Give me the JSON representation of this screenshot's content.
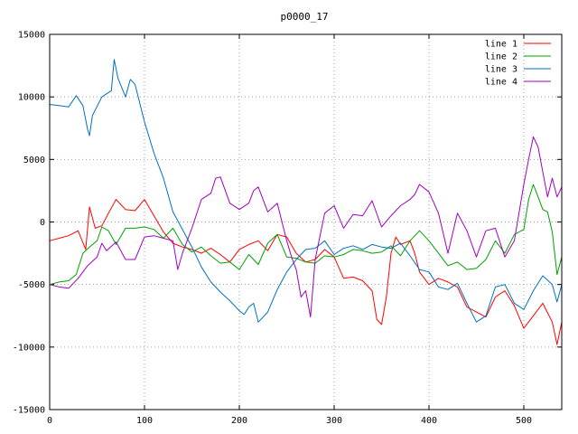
{
  "chart_data": {
    "type": "line",
    "title": "p0000_17",
    "xlabel": "",
    "ylabel": "",
    "xlim": [
      0,
      540
    ],
    "ylim": [
      -15000,
      15000
    ],
    "xticks": [
      0,
      100,
      200,
      300,
      400,
      500
    ],
    "yticks": [
      -15000,
      -10000,
      -5000,
      0,
      5000,
      10000,
      15000
    ],
    "grid": true,
    "legend_position": "top-right",
    "series": [
      {
        "name": "line 1",
        "color": "#ff0000",
        "points": [
          [
            0,
            -1500
          ],
          [
            10,
            -1300
          ],
          [
            20,
            -1100
          ],
          [
            30,
            -700
          ],
          [
            38,
            -2200
          ],
          [
            42,
            1200
          ],
          [
            48,
            -500
          ],
          [
            55,
            -300
          ],
          [
            62,
            700
          ],
          [
            70,
            1800
          ],
          [
            80,
            1000
          ],
          [
            90,
            900
          ],
          [
            100,
            1800
          ],
          [
            110,
            500
          ],
          [
            120,
            -800
          ],
          [
            130,
            -1700
          ],
          [
            140,
            -2000
          ],
          [
            150,
            -2200
          ],
          [
            160,
            -2500
          ],
          [
            170,
            -2100
          ],
          [
            180,
            -2600
          ],
          [
            190,
            -3200
          ],
          [
            200,
            -2200
          ],
          [
            210,
            -1800
          ],
          [
            220,
            -1500
          ],
          [
            230,
            -2300
          ],
          [
            240,
            -1000
          ],
          [
            250,
            -1200
          ],
          [
            260,
            -2500
          ],
          [
            270,
            -3200
          ],
          [
            280,
            -3000
          ],
          [
            290,
            -2200
          ],
          [
            300,
            -2800
          ],
          [
            310,
            -4500
          ],
          [
            320,
            -4400
          ],
          [
            330,
            -4700
          ],
          [
            340,
            -5500
          ],
          [
            345,
            -7800
          ],
          [
            350,
            -8200
          ],
          [
            355,
            -6000
          ],
          [
            360,
            -2500
          ],
          [
            365,
            -1200
          ],
          [
            370,
            -1800
          ],
          [
            380,
            -1500
          ],
          [
            385,
            -2500
          ],
          [
            390,
            -4000
          ],
          [
            400,
            -5000
          ],
          [
            410,
            -4500
          ],
          [
            420,
            -4800
          ],
          [
            430,
            -5200
          ],
          [
            440,
            -6800
          ],
          [
            450,
            -7200
          ],
          [
            460,
            -7600
          ],
          [
            470,
            -6000
          ],
          [
            480,
            -5500
          ],
          [
            490,
            -6700
          ],
          [
            500,
            -8500
          ],
          [
            510,
            -7500
          ],
          [
            520,
            -6500
          ],
          [
            530,
            -8000
          ],
          [
            535,
            -9800
          ],
          [
            540,
            -8000
          ]
        ]
      },
      {
        "name": "line 2",
        "color": "#00a000",
        "points": [
          [
            0,
            -5000
          ],
          [
            10,
            -4800
          ],
          [
            20,
            -4700
          ],
          [
            28,
            -4200
          ],
          [
            35,
            -2500
          ],
          [
            42,
            -2000
          ],
          [
            50,
            -1500
          ],
          [
            55,
            -400
          ],
          [
            62,
            -700
          ],
          [
            70,
            -1800
          ],
          [
            80,
            -500
          ],
          [
            90,
            -500
          ],
          [
            100,
            -400
          ],
          [
            110,
            -600
          ],
          [
            120,
            -1300
          ],
          [
            130,
            -500
          ],
          [
            140,
            -1800
          ],
          [
            150,
            -2400
          ],
          [
            160,
            -2000
          ],
          [
            170,
            -2700
          ],
          [
            180,
            -3300
          ],
          [
            190,
            -3200
          ],
          [
            200,
            -3800
          ],
          [
            210,
            -2600
          ],
          [
            220,
            -3400
          ],
          [
            230,
            -1700
          ],
          [
            240,
            -1000
          ],
          [
            250,
            -2800
          ],
          [
            260,
            -2900
          ],
          [
            270,
            -3200
          ],
          [
            280,
            -3300
          ],
          [
            290,
            -2700
          ],
          [
            300,
            -2800
          ],
          [
            310,
            -2600
          ],
          [
            320,
            -2200
          ],
          [
            330,
            -2300
          ],
          [
            340,
            -2500
          ],
          [
            350,
            -2400
          ],
          [
            360,
            -1900
          ],
          [
            370,
            -2700
          ],
          [
            380,
            -1500
          ],
          [
            390,
            -700
          ],
          [
            400,
            -1500
          ],
          [
            410,
            -2500
          ],
          [
            420,
            -3500
          ],
          [
            430,
            -3200
          ],
          [
            440,
            -3800
          ],
          [
            450,
            -3700
          ],
          [
            460,
            -3000
          ],
          [
            470,
            -1500
          ],
          [
            480,
            -2500
          ],
          [
            490,
            -1000
          ],
          [
            500,
            -600
          ],
          [
            505,
            1800
          ],
          [
            510,
            3000
          ],
          [
            515,
            2000
          ],
          [
            520,
            1000
          ],
          [
            525,
            800
          ],
          [
            530,
            -800
          ],
          [
            535,
            -4200
          ],
          [
            540,
            -2800
          ]
        ]
      },
      {
        "name": "line 3",
        "color": "#0070c0",
        "points": [
          [
            0,
            9400
          ],
          [
            10,
            9300
          ],
          [
            20,
            9200
          ],
          [
            28,
            10100
          ],
          [
            35,
            9300
          ],
          [
            40,
            7400
          ],
          [
            42,
            6900
          ],
          [
            45,
            8500
          ],
          [
            55,
            10000
          ],
          [
            65,
            10500
          ],
          [
            68,
            13000
          ],
          [
            72,
            11500
          ],
          [
            80,
            10000
          ],
          [
            85,
            11400
          ],
          [
            90,
            11000
          ],
          [
            100,
            8000
          ],
          [
            110,
            5500
          ],
          [
            120,
            3500
          ],
          [
            130,
            800
          ],
          [
            140,
            -600
          ],
          [
            150,
            -2000
          ],
          [
            160,
            -3600
          ],
          [
            170,
            -4800
          ],
          [
            180,
            -5600
          ],
          [
            190,
            -6300
          ],
          [
            200,
            -7100
          ],
          [
            205,
            -7400
          ],
          [
            210,
            -6800
          ],
          [
            215,
            -6500
          ],
          [
            220,
            -8000
          ],
          [
            230,
            -7200
          ],
          [
            240,
            -5400
          ],
          [
            250,
            -4000
          ],
          [
            260,
            -3000
          ],
          [
            270,
            -2200
          ],
          [
            280,
            -2100
          ],
          [
            290,
            -1500
          ],
          [
            300,
            -2600
          ],
          [
            310,
            -2100
          ],
          [
            320,
            -1900
          ],
          [
            330,
            -2200
          ],
          [
            340,
            -1800
          ],
          [
            350,
            -2000
          ],
          [
            360,
            -2100
          ],
          [
            370,
            -1700
          ],
          [
            380,
            -2700
          ],
          [
            390,
            -3800
          ],
          [
            400,
            -4000
          ],
          [
            410,
            -5200
          ],
          [
            420,
            -5400
          ],
          [
            430,
            -4900
          ],
          [
            440,
            -6500
          ],
          [
            450,
            -8000
          ],
          [
            460,
            -7500
          ],
          [
            470,
            -5200
          ],
          [
            480,
            -5000
          ],
          [
            490,
            -6500
          ],
          [
            500,
            -7000
          ],
          [
            510,
            -5500
          ],
          [
            520,
            -4300
          ],
          [
            530,
            -5000
          ],
          [
            535,
            -6400
          ],
          [
            540,
            -5000
          ]
        ]
      },
      {
        "name": "line 4",
        "color": "#a000c0",
        "points": [
          [
            0,
            -5000
          ],
          [
            10,
            -5200
          ],
          [
            20,
            -5300
          ],
          [
            30,
            -4500
          ],
          [
            40,
            -3500
          ],
          [
            50,
            -2800
          ],
          [
            55,
            -1700
          ],
          [
            60,
            -2300
          ],
          [
            70,
            -1600
          ],
          [
            80,
            -3000
          ],
          [
            90,
            -3000
          ],
          [
            100,
            -1200
          ],
          [
            110,
            -1100
          ],
          [
            120,
            -1300
          ],
          [
            130,
            -1500
          ],
          [
            135,
            -3800
          ],
          [
            140,
            -2500
          ],
          [
            150,
            -500
          ],
          [
            160,
            1800
          ],
          [
            170,
            2300
          ],
          [
            175,
            3500
          ],
          [
            180,
            3600
          ],
          [
            190,
            1500
          ],
          [
            200,
            1000
          ],
          [
            210,
            1500
          ],
          [
            215,
            2500
          ],
          [
            220,
            2800
          ],
          [
            230,
            800
          ],
          [
            240,
            1500
          ],
          [
            250,
            -1500
          ],
          [
            255,
            -2800
          ],
          [
            260,
            -3800
          ],
          [
            265,
            -6000
          ],
          [
            270,
            -5500
          ],
          [
            275,
            -7600
          ],
          [
            280,
            -3000
          ],
          [
            290,
            700
          ],
          [
            300,
            1300
          ],
          [
            310,
            -500
          ],
          [
            320,
            600
          ],
          [
            330,
            500
          ],
          [
            340,
            1700
          ],
          [
            350,
            -400
          ],
          [
            360,
            500
          ],
          [
            370,
            1300
          ],
          [
            380,
            1800
          ],
          [
            385,
            2200
          ],
          [
            390,
            3000
          ],
          [
            400,
            2400
          ],
          [
            410,
            700
          ],
          [
            420,
            -2500
          ],
          [
            430,
            700
          ],
          [
            440,
            -700
          ],
          [
            450,
            -2800
          ],
          [
            460,
            -700
          ],
          [
            470,
            -500
          ],
          [
            480,
            -2800
          ],
          [
            490,
            -1500
          ],
          [
            500,
            3000
          ],
          [
            505,
            5000
          ],
          [
            510,
            6800
          ],
          [
            515,
            6000
          ],
          [
            520,
            4000
          ],
          [
            525,
            2000
          ],
          [
            530,
            3500
          ],
          [
            535,
            2000
          ],
          [
            540,
            2800
          ]
        ]
      }
    ]
  }
}
